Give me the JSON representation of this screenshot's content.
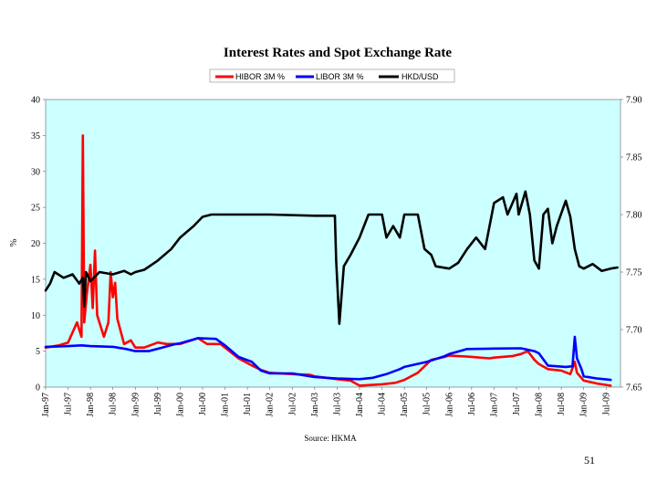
{
  "chart_data": {
    "type": "line",
    "title": "Interest Rates and Spot Exchange Rate",
    "source": "Source: HKMA",
    "ylabel_left": "%",
    "ylim_left": [
      0,
      40
    ],
    "yticks_left": [
      "0",
      "5",
      "10",
      "15",
      "20",
      "25",
      "30",
      "35",
      "40"
    ],
    "ylim_right": [
      7.65,
      7.9
    ],
    "yticks_right": [
      "7.65",
      "7.70",
      "7.75",
      "7.80",
      "7.85",
      "7.90"
    ],
    "x_tick_labels": [
      "Jan-97",
      "Jul-97",
      "Jan-98",
      "Jul-98",
      "Jan-99",
      "Jul-99",
      "Jan-00",
      "Jul-00",
      "Jan-01",
      "Jul-01",
      "Jan-02",
      "Jul-02",
      "Jan-03",
      "Jul-03",
      "Jan-04",
      "Jul-04",
      "Jan-05",
      "Jul-05",
      "Jan-06",
      "Jul-06",
      "Jan-07",
      "Jul-07",
      "Jan-08",
      "Jul-08",
      "Jan-09",
      "Jul-09"
    ],
    "legend_position": "top-center",
    "grid": false,
    "background": "#ccffff",
    "series": [
      {
        "name": "HIBOR 3M %",
        "axis": "left",
        "color": "#ff0000",
        "points": [
          [
            1997.0,
            5.5
          ],
          [
            1997.3,
            5.8
          ],
          [
            1997.5,
            6.2
          ],
          [
            1997.7,
            9.0
          ],
          [
            1997.8,
            7.0
          ],
          [
            1997.83,
            35.0
          ],
          [
            1997.86,
            9.0
          ],
          [
            1997.92,
            13.0
          ],
          [
            1998.0,
            17.0
          ],
          [
            1998.05,
            11.0
          ],
          [
            1998.1,
            19.0
          ],
          [
            1998.15,
            10.0
          ],
          [
            1998.3,
            7.0
          ],
          [
            1998.4,
            9.0
          ],
          [
            1998.45,
            16.0
          ],
          [
            1998.5,
            12.5
          ],
          [
            1998.55,
            14.5
          ],
          [
            1998.6,
            9.5
          ],
          [
            1998.75,
            6.0
          ],
          [
            1998.9,
            6.5
          ],
          [
            1999.0,
            5.5
          ],
          [
            1999.2,
            5.5
          ],
          [
            1999.5,
            6.2
          ],
          [
            1999.7,
            6.0
          ],
          [
            2000.0,
            6.0
          ],
          [
            2000.4,
            6.8
          ],
          [
            2000.6,
            6.0
          ],
          [
            2000.9,
            6.0
          ],
          [
            2001.0,
            5.5
          ],
          [
            2001.3,
            4.0
          ],
          [
            2001.6,
            3.0
          ],
          [
            2001.8,
            2.4
          ],
          [
            2002.0,
            2.0
          ],
          [
            2002.5,
            1.8
          ],
          [
            2002.9,
            1.7
          ],
          [
            2003.0,
            1.5
          ],
          [
            2003.5,
            1.1
          ],
          [
            2003.8,
            0.9
          ],
          [
            2004.0,
            0.2
          ],
          [
            2004.5,
            0.4
          ],
          [
            2004.8,
            0.6
          ],
          [
            2005.0,
            1.0
          ],
          [
            2005.3,
            2.0
          ],
          [
            2005.6,
            3.8
          ],
          [
            2005.9,
            4.2
          ],
          [
            2006.0,
            4.4
          ],
          [
            2006.5,
            4.2
          ],
          [
            2006.9,
            4.0
          ],
          [
            2007.0,
            4.1
          ],
          [
            2007.4,
            4.3
          ],
          [
            2007.6,
            4.6
          ],
          [
            2007.75,
            5.0
          ],
          [
            2007.9,
            3.8
          ],
          [
            2008.0,
            3.2
          ],
          [
            2008.2,
            2.5
          ],
          [
            2008.5,
            2.3
          ],
          [
            2008.7,
            1.8
          ],
          [
            2008.8,
            3.5
          ],
          [
            2008.85,
            2.0
          ],
          [
            2009.0,
            0.9
          ],
          [
            2009.3,
            0.5
          ],
          [
            2009.6,
            0.2
          ]
        ]
      },
      {
        "name": "LIBOR 3M %",
        "axis": "left",
        "color": "#0000ff",
        "points": [
          [
            1997.0,
            5.6
          ],
          [
            1997.5,
            5.7
          ],
          [
            1997.8,
            5.8
          ],
          [
            1998.0,
            5.7
          ],
          [
            1998.5,
            5.6
          ],
          [
            1998.8,
            5.3
          ],
          [
            1999.0,
            5.0
          ],
          [
            1999.3,
            5.0
          ],
          [
            1999.6,
            5.5
          ],
          [
            1999.9,
            6.0
          ],
          [
            2000.0,
            6.1
          ],
          [
            2000.4,
            6.8
          ],
          [
            2000.8,
            6.7
          ],
          [
            2001.0,
            5.8
          ],
          [
            2001.3,
            4.2
          ],
          [
            2001.6,
            3.5
          ],
          [
            2001.8,
            2.3
          ],
          [
            2002.0,
            1.9
          ],
          [
            2002.5,
            1.9
          ],
          [
            2002.9,
            1.5
          ],
          [
            2003.0,
            1.4
          ],
          [
            2003.5,
            1.2
          ],
          [
            2004.0,
            1.1
          ],
          [
            2004.3,
            1.3
          ],
          [
            2004.6,
            1.8
          ],
          [
            2004.9,
            2.5
          ],
          [
            2005.0,
            2.8
          ],
          [
            2005.5,
            3.5
          ],
          [
            2005.9,
            4.3
          ],
          [
            2006.0,
            4.6
          ],
          [
            2006.4,
            5.3
          ],
          [
            2006.9,
            5.35
          ],
          [
            2007.0,
            5.36
          ],
          [
            2007.6,
            5.4
          ],
          [
            2007.9,
            5.0
          ],
          [
            2008.0,
            4.7
          ],
          [
            2008.2,
            3.0
          ],
          [
            2008.6,
            2.8
          ],
          [
            2008.75,
            2.9
          ],
          [
            2008.8,
            7.0
          ],
          [
            2008.85,
            4.0
          ],
          [
            2008.95,
            2.5
          ],
          [
            2009.0,
            1.5
          ],
          [
            2009.3,
            1.2
          ],
          [
            2009.6,
            1.0
          ]
        ]
      },
      {
        "name": "HKD/USD",
        "axis": "right",
        "color": "#000000",
        "points": [
          [
            1997.0,
            7.734
          ],
          [
            1997.1,
            7.74
          ],
          [
            1997.2,
            7.75
          ],
          [
            1997.4,
            7.745
          ],
          [
            1997.6,
            7.748
          ],
          [
            1997.75,
            7.74
          ],
          [
            1997.83,
            7.745
          ],
          [
            1997.86,
            7.72
          ],
          [
            1997.9,
            7.75
          ],
          [
            1998.0,
            7.742
          ],
          [
            1998.2,
            7.75
          ],
          [
            1998.5,
            7.748
          ],
          [
            1998.75,
            7.751
          ],
          [
            1998.9,
            7.748
          ],
          [
            1999.0,
            7.75
          ],
          [
            1999.2,
            7.752
          ],
          [
            1999.5,
            7.76
          ],
          [
            1999.8,
            7.77
          ],
          [
            2000.0,
            7.78
          ],
          [
            2000.3,
            7.79
          ],
          [
            2000.5,
            7.798
          ],
          [
            2000.7,
            7.8
          ],
          [
            2001.0,
            7.8
          ],
          [
            2002.0,
            7.8
          ],
          [
            2003.0,
            7.799
          ],
          [
            2003.45,
            7.799
          ],
          [
            2003.48,
            7.76
          ],
          [
            2003.55,
            7.705
          ],
          [
            2003.65,
            7.755
          ],
          [
            2003.8,
            7.765
          ],
          [
            2004.0,
            7.78
          ],
          [
            2004.2,
            7.8
          ],
          [
            2004.5,
            7.8
          ],
          [
            2004.6,
            7.78
          ],
          [
            2004.75,
            7.79
          ],
          [
            2004.9,
            7.78
          ],
          [
            2005.0,
            7.8
          ],
          [
            2005.3,
            7.8
          ],
          [
            2005.45,
            7.77
          ],
          [
            2005.6,
            7.765
          ],
          [
            2005.7,
            7.755
          ],
          [
            2006.0,
            7.753
          ],
          [
            2006.2,
            7.758
          ],
          [
            2006.4,
            7.77
          ],
          [
            2006.6,
            7.78
          ],
          [
            2006.8,
            7.77
          ],
          [
            2007.0,
            7.81
          ],
          [
            2007.2,
            7.815
          ],
          [
            2007.3,
            7.8
          ],
          [
            2007.5,
            7.818
          ],
          [
            2007.55,
            7.8
          ],
          [
            2007.7,
            7.82
          ],
          [
            2007.8,
            7.8
          ],
          [
            2007.9,
            7.76
          ],
          [
            2008.0,
            7.753
          ],
          [
            2008.1,
            7.8
          ],
          [
            2008.2,
            7.805
          ],
          [
            2008.3,
            7.775
          ],
          [
            2008.4,
            7.79
          ],
          [
            2008.6,
            7.812
          ],
          [
            2008.7,
            7.798
          ],
          [
            2008.8,
            7.77
          ],
          [
            2008.9,
            7.755
          ],
          [
            2009.0,
            7.753
          ],
          [
            2009.2,
            7.757
          ],
          [
            2009.4,
            7.751
          ],
          [
            2009.6,
            7.753
          ],
          [
            2009.75,
            7.754
          ]
        ]
      }
    ]
  },
  "page": {
    "number": "51"
  }
}
